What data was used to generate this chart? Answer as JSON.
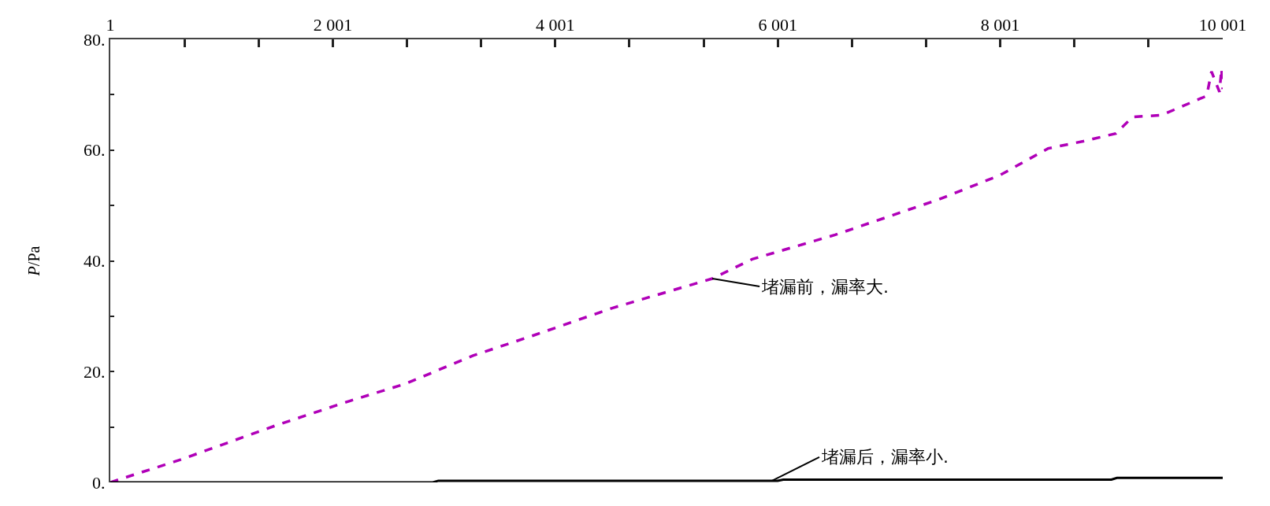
{
  "chart_data": {
    "type": "line",
    "ylabel": "P/Pa",
    "series": [
      {
        "color": "#b000b8",
        "line_style": "dashed",
        "x": [
          1,
          646,
          1506,
          2152,
          2653,
          3262,
          3800,
          4517,
          5413,
          5771,
          6517,
          7449,
          8001,
          8431,
          8747,
          9040,
          9191,
          9449,
          9857,
          9900,
          9972,
          9990,
          10001
        ],
        "values": [
          0,
          4.2,
          10.4,
          14.7,
          17.8,
          22.9,
          26.5,
          31.5,
          36.8,
          40.3,
          44.7,
          51.1,
          55.5,
          60.3,
          61.6,
          63.0,
          66.0,
          66.3,
          69.8,
          74.2,
          70.5,
          74.7,
          71
        ]
      },
      {
        "color": "#000000",
        "line_style": "solid",
        "x": [
          1,
          2900,
          2950,
          6000,
          6050,
          9000,
          9050,
          10001
        ],
        "values": [
          0,
          0,
          0.3,
          0.3,
          0.5,
          0.5,
          0.8,
          0.8
        ]
      }
    ],
    "xlim": [
      1,
      10001
    ],
    "ylim": [
      0,
      80
    ],
    "xticks": [
      {
        "value": 1,
        "label": "1"
      },
      {
        "value": 667.7,
        "label": null
      },
      {
        "value": 1334.3,
        "label": null
      },
      {
        "value": 2001,
        "label": "2 001"
      },
      {
        "value": 2667.7,
        "label": null
      },
      {
        "value": 3334.3,
        "label": null
      },
      {
        "value": 4001,
        "label": "4 001"
      },
      {
        "value": 4667.7,
        "label": null
      },
      {
        "value": 5334.3,
        "label": null
      },
      {
        "value": 6001,
        "label": "6 001"
      },
      {
        "value": 6667.7,
        "label": null
      },
      {
        "value": 7334.3,
        "label": null
      },
      {
        "value": 8001,
        "label": "8 001"
      },
      {
        "value": 8667.7,
        "label": null
      },
      {
        "value": 9334.3,
        "label": null
      },
      {
        "value": 10001,
        "label": "10 001"
      }
    ],
    "yticks": [
      {
        "value": 0,
        "label": "0."
      },
      {
        "value": 10,
        "label": null
      },
      {
        "value": 20,
        "label": "20."
      },
      {
        "value": 30,
        "label": null
      },
      {
        "value": 40,
        "label": "40."
      },
      {
        "value": 50,
        "label": null
      },
      {
        "value": 60,
        "label": "60."
      },
      {
        "value": 70,
        "label": null
      },
      {
        "value": 80,
        "label": "80."
      }
    ],
    "annotations": [
      {
        "text": "堵漏前，漏率大.",
        "x": 5413,
        "y": 36.8
      },
      {
        "text": "堵漏后，漏率小.",
        "x": 5950,
        "y": 0.3
      }
    ],
    "marker": "none"
  }
}
